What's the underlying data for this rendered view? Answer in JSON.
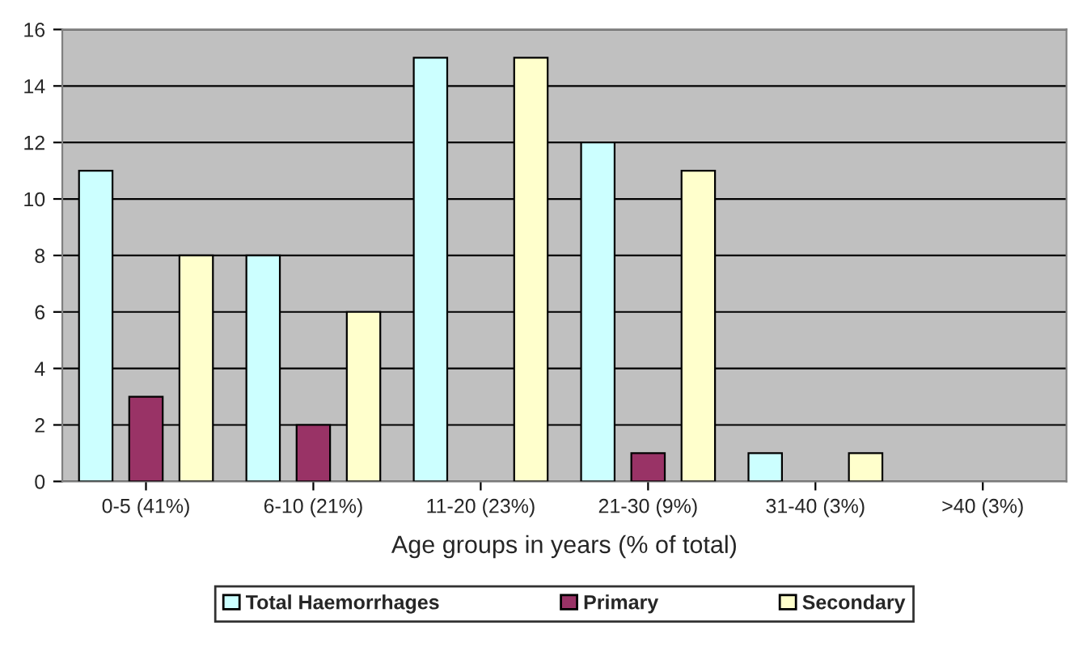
{
  "chart_data": {
    "type": "bar",
    "xlabel": "Age groups in years (% of total)",
    "categories": [
      "0-5 (41%)",
      "6-10 (21%)",
      "11-20 (23%)",
      "21-30 (9%)",
      "31-40 (3%)",
      ">40 (3%)"
    ],
    "series": [
      {
        "name": "Total Haemorrhages",
        "color": "#ccffff",
        "values": [
          11,
          8,
          15,
          12,
          1,
          0
        ]
      },
      {
        "name": "Primary",
        "color": "#993366",
        "values": [
          3,
          2,
          0,
          1,
          0,
          0
        ]
      },
      {
        "name": "Secondary",
        "color": "#ffffcc",
        "values": [
          8,
          6,
          15,
          11,
          1,
          0
        ]
      }
    ],
    "ylim": [
      0,
      16
    ],
    "yticks": [
      0,
      2,
      4,
      6,
      8,
      10,
      12,
      14,
      16
    ],
    "grid": "y",
    "legend": "bottom"
  }
}
